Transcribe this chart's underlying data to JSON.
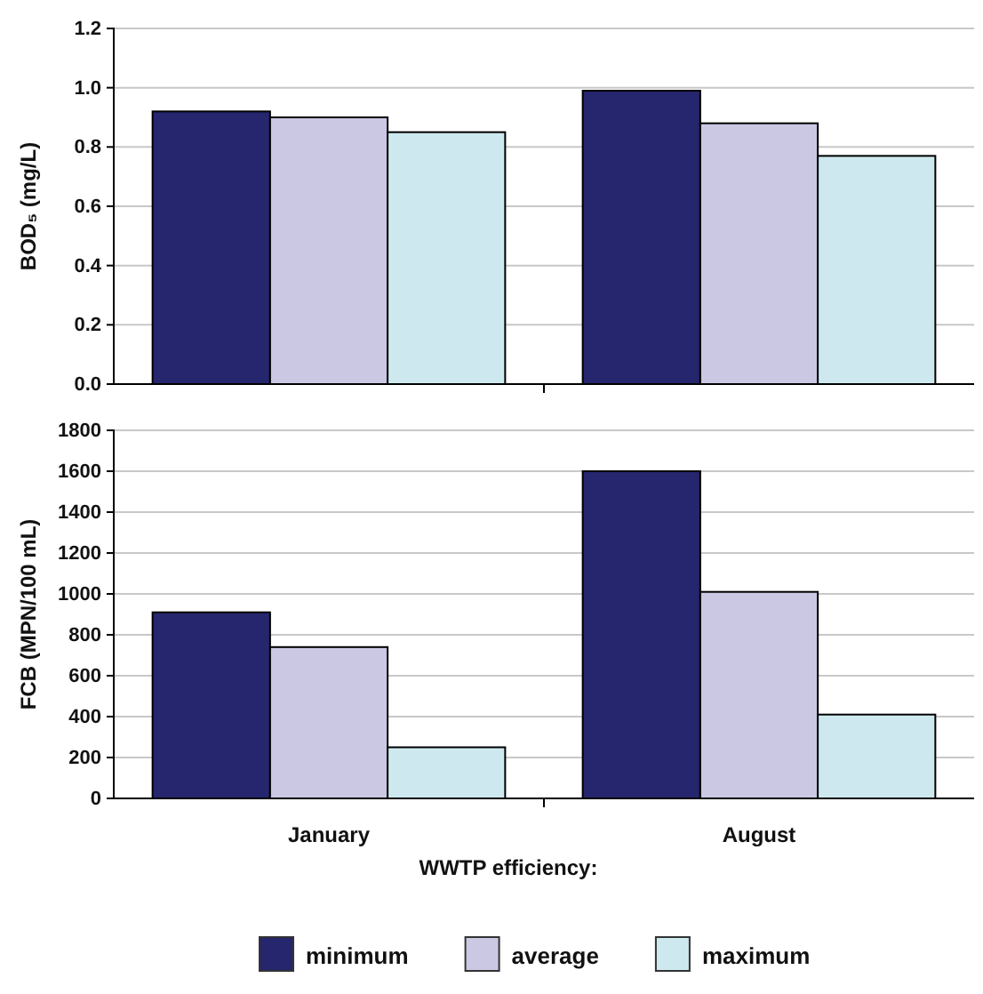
{
  "chart_data": [
    {
      "type": "bar",
      "ylabel": "BOD₅ (mg/L)",
      "categories": [
        null,
        null
      ],
      "series": [
        {
          "color": "#26266e",
          "values": [
            0.92,
            0.99
          ]
        },
        {
          "color": "#cbc8e4",
          "values": [
            0.9,
            0.88
          ]
        },
        {
          "color": "#cde9ef",
          "values": [
            0.85,
            0.77
          ]
        }
      ],
      "ylim": [
        0,
        1.2
      ],
      "yticks": [
        {
          "value": 0,
          "label": "0.0"
        },
        {
          "value": 0.2,
          "label": "0.2"
        },
        {
          "value": 0.4,
          "label": "0.4"
        },
        {
          "value": 0.6,
          "label": "0.6"
        },
        {
          "value": 0.8,
          "label": "0.8"
        },
        {
          "value": 1,
          "label": "1.0"
        },
        {
          "value": 1.2,
          "label": "1.2"
        }
      ],
      "grid": "y",
      "tick_labels": "y",
      "legend": false
    },
    {
      "type": "bar",
      "ylabel": "FCB (MPN/100 mL)",
      "xlabel": "WWTP efficiency:",
      "categories": [
        "January",
        "August"
      ],
      "series": [
        {
          "name": "minimum",
          "color": "#26266e",
          "values": [
            910,
            1600
          ]
        },
        {
          "name": "average",
          "color": "#cbc8e4",
          "values": [
            740,
            1010
          ]
        },
        {
          "name": "maximum",
          "color": "#cde9ef",
          "values": [
            250,
            410
          ]
        }
      ],
      "ylim": [
        0,
        1800
      ],
      "yticks": [
        0,
        200,
        400,
        600,
        800,
        1000,
        1200,
        1400,
        1600,
        1800
      ],
      "grid": "y",
      "legend": "bottom"
    }
  ]
}
